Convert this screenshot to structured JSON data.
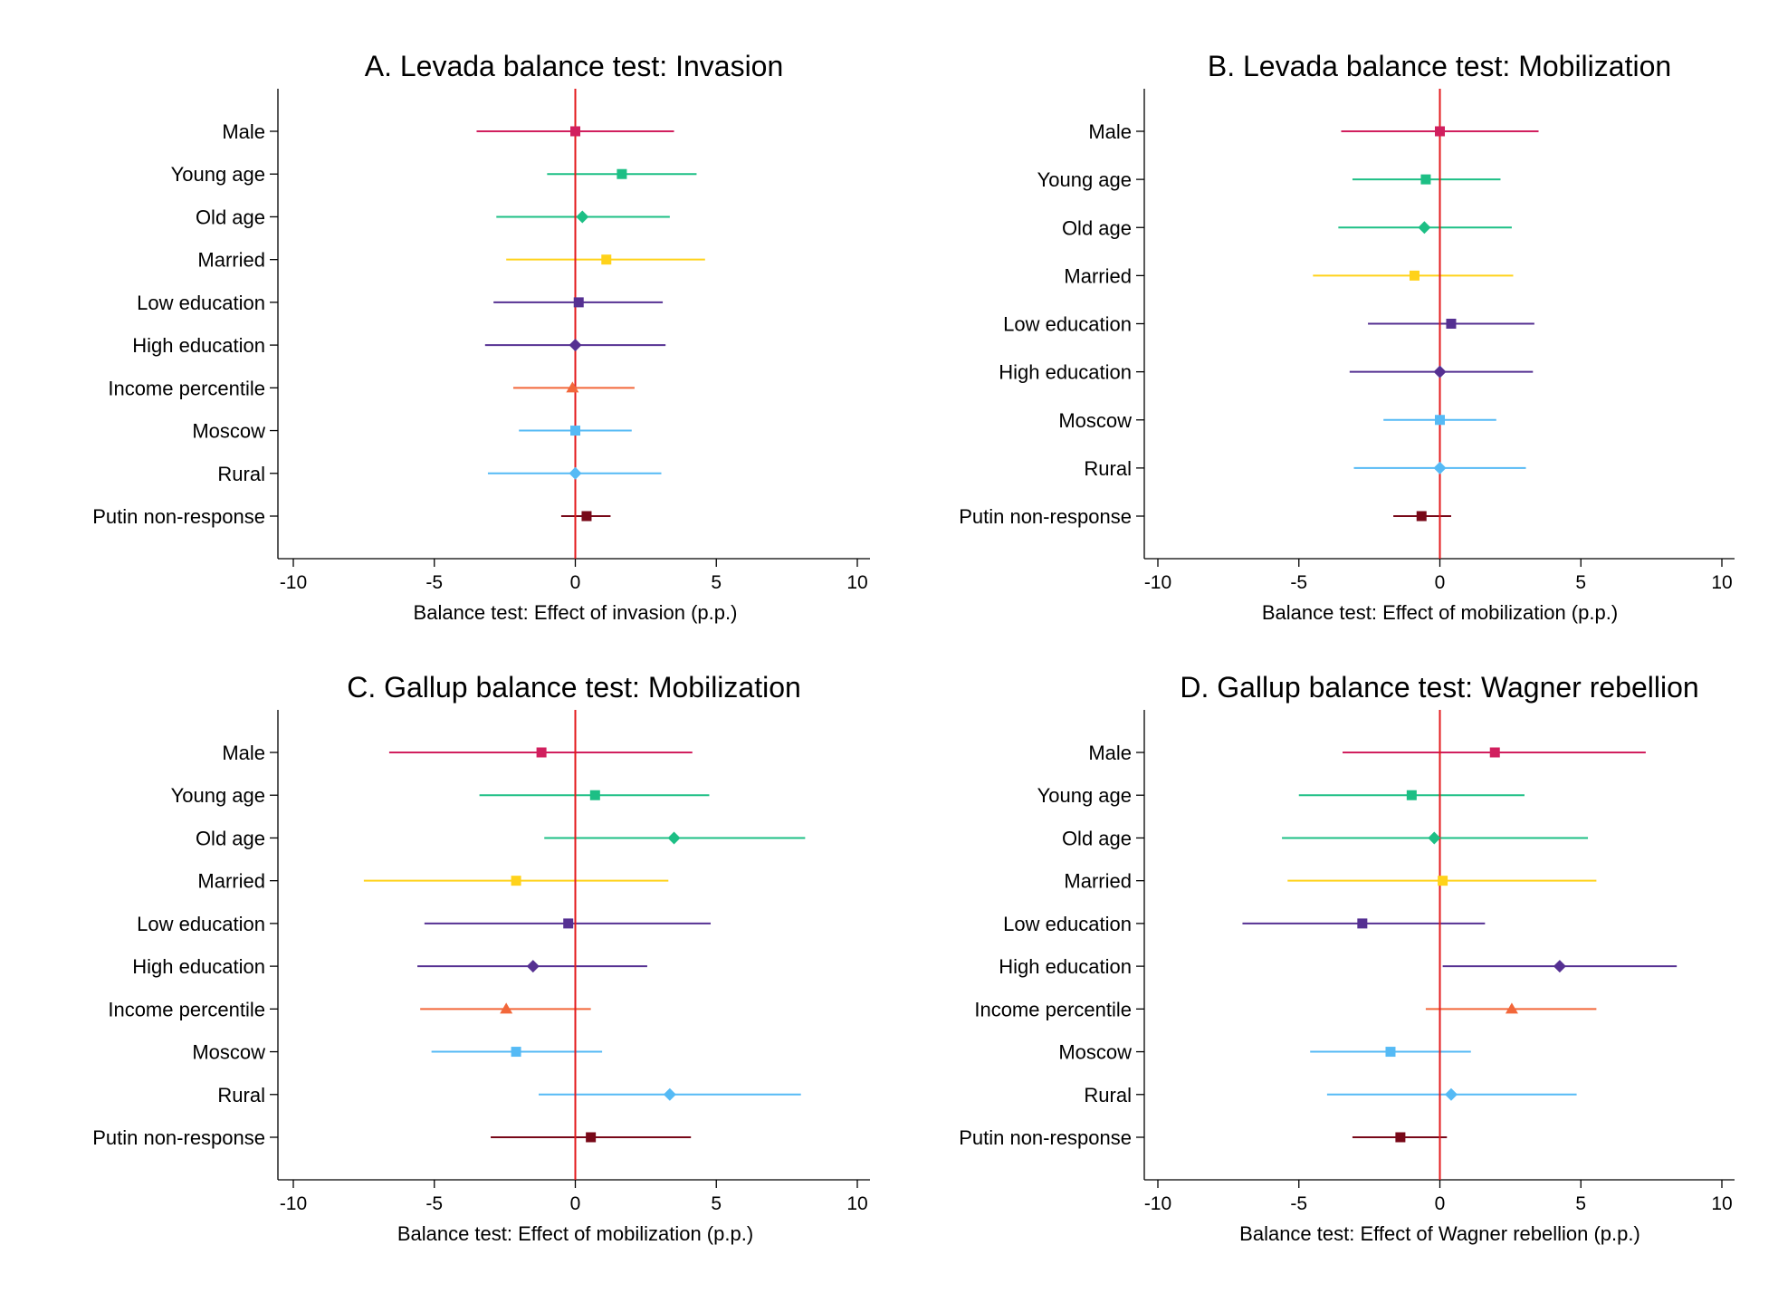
{
  "colors": {
    "male": "#d11f5e",
    "young": "#1dbf85",
    "old": "#1dbf85",
    "married": "#ffd21a",
    "lowed": "#553092",
    "highed": "#553092",
    "income": "#f2673a",
    "moscow": "#55baf5",
    "rural": "#55baf5",
    "putin": "#780818",
    "zero_line": "#e31a1c"
  },
  "chart_data": [
    {
      "type": "scatter",
      "subtype": "coefficient-plot",
      "title": "A. Levada balance test: Invasion",
      "xlabel": "Balance test: Effect of invasion (p.p.)",
      "xlim": [
        -10,
        10
      ],
      "xticks": [
        -10,
        -5,
        0,
        5,
        10
      ],
      "rows": [
        {
          "label": "Male",
          "key": "male",
          "marker": "square",
          "est": 0,
          "lo": -3.5,
          "hi": 3.5
        },
        {
          "label": "Young age",
          "key": "young",
          "marker": "square",
          "est": 1.65,
          "lo": -1.0,
          "hi": 4.3
        },
        {
          "label": "Old age",
          "key": "old",
          "marker": "diamond",
          "est": 0.25,
          "lo": -2.8,
          "hi": 3.35
        },
        {
          "label": "Married",
          "key": "married",
          "marker": "square",
          "est": 1.1,
          "lo": -2.45,
          "hi": 4.6
        },
        {
          "label": "Low education",
          "key": "lowed",
          "marker": "square",
          "est": 0.12,
          "lo": -2.9,
          "hi": 3.1
        },
        {
          "label": "High education",
          "key": "highed",
          "marker": "diamond",
          "est": 0,
          "lo": -3.2,
          "hi": 3.2
        },
        {
          "label": "Income percentile",
          "key": "income",
          "marker": "triangle",
          "est": -0.1,
          "lo": -2.2,
          "hi": 2.1
        },
        {
          "label": "Moscow",
          "key": "moscow",
          "marker": "square",
          "est": 0,
          "lo": -2.0,
          "hi": 2.0
        },
        {
          "label": "Rural",
          "key": "rural",
          "marker": "diamond",
          "est": 0,
          "lo": -3.1,
          "hi": 3.05
        },
        {
          "label": "Putin non-response",
          "key": "putin",
          "marker": "square",
          "est": 0.4,
          "lo": -0.5,
          "hi": 1.25
        }
      ]
    },
    {
      "type": "scatter",
      "subtype": "coefficient-plot",
      "title": "B. Levada balance test: Mobilization",
      "xlabel": "Balance test: Effect of mobilization (p.p.)",
      "xlim": [
        -10,
        10
      ],
      "xticks": [
        -10,
        -5,
        0,
        5,
        10
      ],
      "rows": [
        {
          "label": "Male",
          "key": "male",
          "marker": "square",
          "est": 0,
          "lo": -3.5,
          "hi": 3.5
        },
        {
          "label": "Young age",
          "key": "young",
          "marker": "square",
          "est": -0.5,
          "lo": -3.1,
          "hi": 2.15
        },
        {
          "label": "Old age",
          "key": "old",
          "marker": "diamond",
          "est": -0.55,
          "lo": -3.6,
          "hi": 2.55
        },
        {
          "label": "Married",
          "key": "married",
          "marker": "square",
          "est": -0.9,
          "lo": -4.5,
          "hi": 2.6
        },
        {
          "label": "Low education",
          "key": "lowed",
          "marker": "square",
          "est": 0.4,
          "lo": -2.55,
          "hi": 3.35
        },
        {
          "label": "High education",
          "key": "highed",
          "marker": "diamond",
          "est": 0,
          "lo": -3.2,
          "hi": 3.3
        },
        {
          "label": "Moscow",
          "key": "moscow",
          "marker": "square",
          "est": 0,
          "lo": -2.0,
          "hi": 2.0
        },
        {
          "label": "Rural",
          "key": "rural",
          "marker": "diamond",
          "est": 0,
          "lo": -3.05,
          "hi": 3.05
        },
        {
          "label": "Putin non-response",
          "key": "putin",
          "marker": "square",
          "est": -0.65,
          "lo": -1.65,
          "hi": 0.4
        }
      ]
    },
    {
      "type": "scatter",
      "subtype": "coefficient-plot",
      "title": "C. Gallup balance test: Mobilization",
      "xlabel": "Balance test: Effect of mobilization (p.p.)",
      "xlim": [
        -10,
        10
      ],
      "xticks": [
        -10,
        -5,
        0,
        5,
        10
      ],
      "rows": [
        {
          "label": "Male",
          "key": "male",
          "marker": "square",
          "est": -1.2,
          "lo": -6.6,
          "hi": 4.15
        },
        {
          "label": "Young age",
          "key": "young",
          "marker": "square",
          "est": 0.7,
          "lo": -3.4,
          "hi": 4.75
        },
        {
          "label": "Old age",
          "key": "old",
          "marker": "diamond",
          "est": 3.5,
          "lo": -1.1,
          "hi": 8.15
        },
        {
          "label": "Married",
          "key": "married",
          "marker": "square",
          "est": -2.1,
          "lo": -7.5,
          "hi": 3.3
        },
        {
          "label": "Low education",
          "key": "lowed",
          "marker": "square",
          "est": -0.25,
          "lo": -5.35,
          "hi": 4.8
        },
        {
          "label": "High education",
          "key": "highed",
          "marker": "diamond",
          "est": -1.5,
          "lo": -5.6,
          "hi": 2.55
        },
        {
          "label": "Income percentile",
          "key": "income",
          "marker": "triangle",
          "est": -2.45,
          "lo": -5.5,
          "hi": 0.55
        },
        {
          "label": "Moscow",
          "key": "moscow",
          "marker": "square",
          "est": -2.1,
          "lo": -5.1,
          "hi": 0.95
        },
        {
          "label": "Rural",
          "key": "rural",
          "marker": "diamond",
          "est": 3.35,
          "lo": -1.3,
          "hi": 8.0
        },
        {
          "label": "Putin non-response",
          "key": "putin",
          "marker": "square",
          "est": 0.55,
          "lo": -3.0,
          "hi": 4.1
        }
      ]
    },
    {
      "type": "scatter",
      "subtype": "coefficient-plot",
      "title": "D. Gallup balance test: Wagner rebellion",
      "xlabel": "Balance test: Effect of Wagner rebellion (p.p.)",
      "xlim": [
        -10,
        10
      ],
      "xticks": [
        -10,
        -5,
        0,
        5,
        10
      ],
      "rows": [
        {
          "label": "Male",
          "key": "male",
          "marker": "square",
          "est": 1.95,
          "lo": -3.45,
          "hi": 7.3
        },
        {
          "label": "Young age",
          "key": "young",
          "marker": "square",
          "est": -1.0,
          "lo": -5.0,
          "hi": 3.0
        },
        {
          "label": "Old age",
          "key": "old",
          "marker": "diamond",
          "est": -0.2,
          "lo": -5.6,
          "hi": 5.25
        },
        {
          "label": "Married",
          "key": "married",
          "marker": "square",
          "est": 0.1,
          "lo": -5.4,
          "hi": 5.55
        },
        {
          "label": "Low education",
          "key": "lowed",
          "marker": "square",
          "est": -2.75,
          "lo": -7.0,
          "hi": 1.6
        },
        {
          "label": "High education",
          "key": "highed",
          "marker": "diamond",
          "est": 4.25,
          "lo": 0.1,
          "hi": 8.4
        },
        {
          "label": "Income percentile",
          "key": "income",
          "marker": "triangle",
          "est": 2.55,
          "lo": -0.5,
          "hi": 5.55
        },
        {
          "label": "Moscow",
          "key": "moscow",
          "marker": "square",
          "est": -1.75,
          "lo": -4.6,
          "hi": 1.1
        },
        {
          "label": "Rural",
          "key": "rural",
          "marker": "diamond",
          "est": 0.4,
          "lo": -4.0,
          "hi": 4.85
        },
        {
          "label": "Putin non-response",
          "key": "putin",
          "marker": "square",
          "est": -1.4,
          "lo": -3.1,
          "hi": 0.25
        }
      ]
    }
  ]
}
